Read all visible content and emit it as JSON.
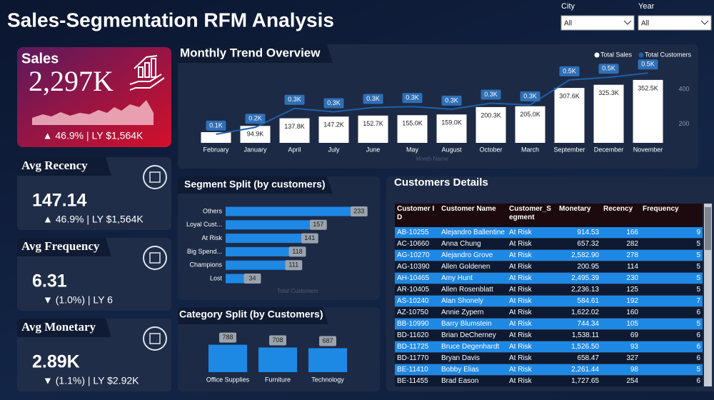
{
  "header": {
    "title": "Sales-Segmentation RFM Analysis"
  },
  "filters": [
    {
      "label": "City",
      "value": "All"
    },
    {
      "label": "Year",
      "value": "All"
    }
  ],
  "kpis": [
    {
      "label": "Sales",
      "value": "2,297K",
      "comparison": "▲ 46.9% | LY $1,564K"
    },
    {
      "label": "Avg Recency",
      "value": "147.14",
      "comparison": "▲ 46.9% | LY $1,564K"
    },
    {
      "label": "Avg Frequency",
      "value": "6.31",
      "comparison": "▼ (1.0%) | LY 6"
    },
    {
      "label": "Avg Monetary",
      "value": "2.89K",
      "comparison": "▼ (1.1%) | LY $2.92K"
    }
  ],
  "chart_data": [
    {
      "type": "combo",
      "title": "Monthly Trend Overview",
      "x_label": "Month Name",
      "legend": "top-right",
      "categories": [
        "February",
        "January",
        "April",
        "July",
        "June",
        "May",
        "August",
        "October",
        "March",
        "September",
        "December",
        "November"
      ],
      "ylim": [
        0,
        420
      ],
      "y2lim": [
        90,
        525
      ],
      "y2ticks": [
        200,
        400
      ],
      "series": [
        {
          "name": "Total Sales",
          "type": "bar",
          "color": "#ffffff",
          "values": [
            60,
            94.9,
            137.8,
            147.2,
            152.7,
            155.0,
            159.0,
            200.3,
            205.0,
            307.6,
            325.3,
            352.5
          ],
          "value_labels": [
            null,
            "94.9K",
            "137.8K",
            "147.2K",
            "152.7K",
            "155.0K",
            "159.0K",
            "200.3K",
            "205.0K",
            "307.6K",
            "325.3K",
            "352.5K"
          ]
        },
        {
          "name": "Total Customers",
          "type": "line",
          "axis": "y2",
          "color": "#1f5fa8",
          "values": [
            140,
            180,
            290,
            270,
            295,
            300,
            285,
            320,
            310,
            455,
            470,
            495
          ],
          "value_labels": [
            "0.1K",
            "0.2K",
            "0.3K",
            "0.3K",
            "0.3K",
            "0.3K",
            "0.3K",
            "0.3K",
            "0.3K",
            "0.5K",
            "0.5K",
            "0.5K"
          ]
        }
      ]
    },
    {
      "type": "hbar",
      "title": "Segment Split (by customers)",
      "x_label": "Total Customers",
      "categories": [
        "Others",
        "Loyal Cust...",
        "At Risk",
        "Big Spend...",
        "Champions",
        "Lost"
      ],
      "values": [
        233,
        157,
        141,
        118,
        111,
        34
      ],
      "color": "#1e88e5",
      "xlim": [
        0,
        240
      ]
    },
    {
      "type": "bar",
      "title": "Category Split (by Customers)",
      "categories": [
        "Office Supplies",
        "Furniture",
        "Technology"
      ],
      "values": [
        788,
        708,
        687
      ],
      "color": "#1e88e5",
      "ylim": [
        0,
        800
      ]
    }
  ],
  "table": {
    "title": "Customers Details",
    "columns": [
      "Customer ID",
      "Customer Name",
      "Customer_Segment",
      "Monetary",
      "Recency",
      "Frequency"
    ],
    "rows": [
      [
        "AB-10255",
        "Alejandro Ballentine",
        "At Risk",
        "914.53",
        166,
        9
      ],
      [
        "AC-10660",
        "Anna Chung",
        "At Risk",
        "657.32",
        282,
        5
      ],
      [
        "AG-10270",
        "Alejandro Grove",
        "At Risk",
        "2,582.90",
        278,
        5
      ],
      [
        "AG-10390",
        "Allen Goldenen",
        "At Risk",
        "200.95",
        114,
        5
      ],
      [
        "AH-10465",
        "Amy Hunt",
        "At Risk",
        "2,495.39",
        230,
        5
      ],
      [
        "AR-10405",
        "Allen Rosenblatt",
        "At Risk",
        "2,236.13",
        125,
        5
      ],
      [
        "AS-10240",
        "Alan Shonely",
        "At Risk",
        "584.61",
        192,
        7
      ],
      [
        "AZ-10750",
        "Annie Zypern",
        "At Risk",
        "1,622.02",
        160,
        6
      ],
      [
        "BB-10990",
        "Barry Blumstein",
        "At Risk",
        "744.34",
        105,
        5
      ],
      [
        "BD-11620",
        "Brian DeCherney",
        "At Risk",
        "1,538.11",
        69,
        6
      ],
      [
        "BD-11725",
        "Bruce Degenhardt",
        "At Risk",
        "1,526.50",
        93,
        6
      ],
      [
        "BD-11770",
        "Bryan Davis",
        "At Risk",
        "658.47",
        327,
        6
      ],
      [
        "BE-11410",
        "Bobby Elias",
        "At Risk",
        "2,261.44",
        98,
        5
      ],
      [
        "BE-11455",
        "Brad Eason",
        "At Risk",
        "1,727.65",
        254,
        6
      ]
    ]
  }
}
